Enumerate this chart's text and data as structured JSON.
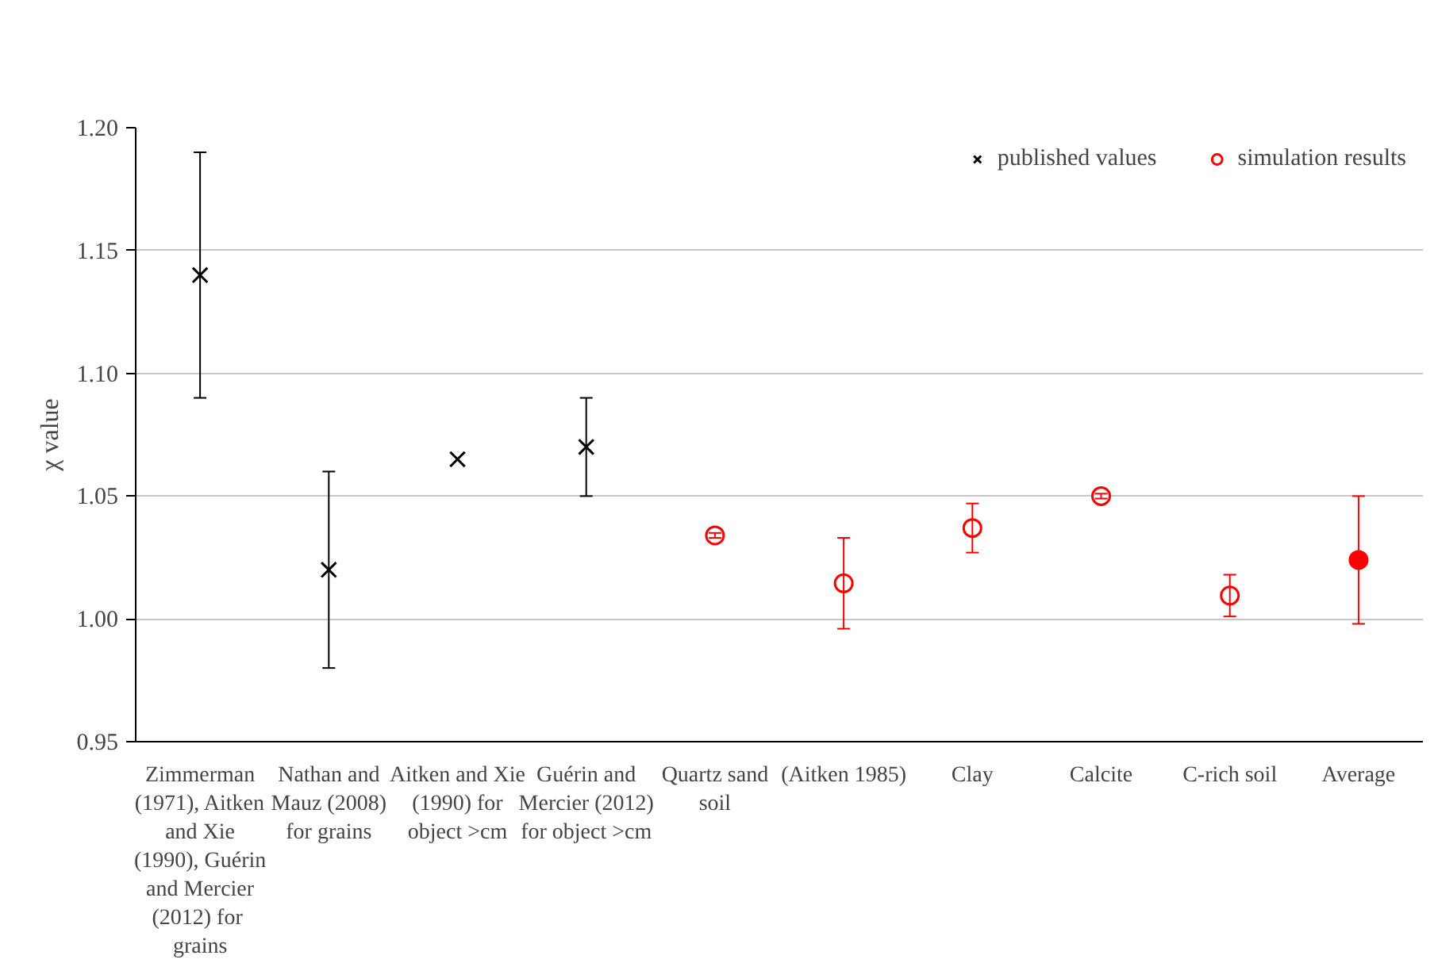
{
  "chart_data": {
    "type": "scatter",
    "ylabel": "χ value",
    "categories": [
      "Zimmerman (1971), Aitken and Xie (1990), Guérin and Mercier (2012)  for grains",
      "Nathan and Mauz (2008) for grains",
      "Aitken and Xie (1990) for object >cm",
      "Guérin and Mercier (2012) for object >cm",
      "Quartz sand soil",
      "(Aitken 1985)",
      "Clay",
      "Calcite",
      "C-rich soil",
      "Average"
    ],
    "series": [
      {
        "name": "published values",
        "color": "#000000",
        "marker": "cross",
        "values": [
          1.14,
          1.02,
          1.065,
          1.07,
          null,
          null,
          null,
          null,
          null,
          null
        ],
        "errors": [
          [
            1.09,
            1.19
          ],
          [
            0.98,
            1.06
          ],
          null,
          [
            1.05,
            1.09
          ],
          null,
          null,
          null,
          null,
          null,
          null
        ]
      },
      {
        "name": "simulation results",
        "color": "#ff0000",
        "marker": "circle",
        "values": [
          null,
          null,
          null,
          null,
          1.034,
          1.0145,
          1.037,
          1.05,
          1.0095,
          null
        ],
        "errors": [
          null,
          null,
          null,
          null,
          [
            1.033,
            1.035
          ],
          [
            0.996,
            1.033
          ],
          [
            1.027,
            1.047
          ],
          [
            1.049,
            1.051
          ],
          [
            1.001,
            1.018
          ],
          null
        ]
      },
      {
        "color": "#ff0000",
        "marker": "circle",
        "values": [
          null,
          null,
          null,
          null,
          null,
          null,
          null,
          null,
          null,
          1.024
        ],
        "errors": [
          null,
          null,
          null,
          null,
          null,
          null,
          null,
          null,
          null,
          [
            0.998,
            1.05
          ]
        ]
      }
    ],
    "ylim": [
      0.95,
      1.2
    ],
    "yticks": [
      {
        "value": 0.95,
        "label": "0.95"
      },
      {
        "value": 1.0,
        "label": "1.00"
      },
      {
        "value": 1.05,
        "label": "1.05"
      },
      {
        "value": 1.1,
        "label": "1.10"
      },
      {
        "value": 1.15,
        "label": "1.15"
      },
      {
        "value": 1.2,
        "label": "1.20"
      }
    ],
    "grid": "y",
    "legend": "top right"
  }
}
